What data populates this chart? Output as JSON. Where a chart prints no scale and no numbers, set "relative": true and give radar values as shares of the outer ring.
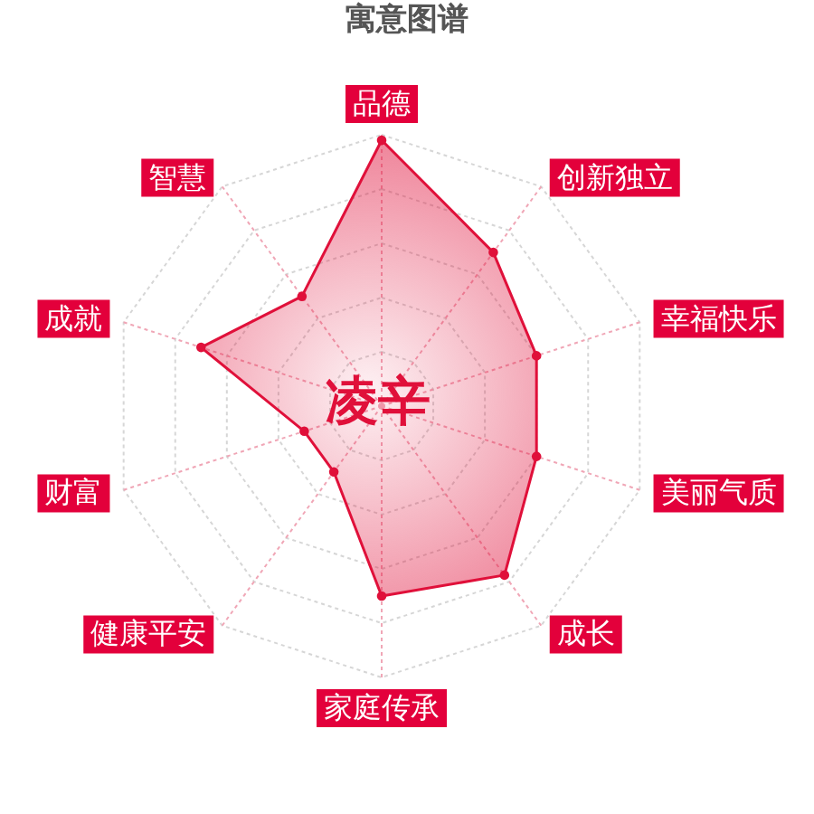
{
  "chart_data": {
    "type": "radar",
    "title": "寓意图谱",
    "categories": [
      "品德",
      "创新独立",
      "幸福快乐",
      "美丽气质",
      "成长",
      "家庭传承",
      "健康平安",
      "财富",
      "成就",
      "智慧"
    ],
    "relative": true,
    "series": [
      {
        "color": "#e0103a",
        "values": [
          0.98,
          0.7,
          0.6,
          0.6,
          0.77,
          0.7,
          0.3,
          0.3,
          0.7,
          0.5
        ]
      }
    ],
    "annotations": [
      "凌辛"
    ],
    "grid": true,
    "marker": "circle"
  }
}
